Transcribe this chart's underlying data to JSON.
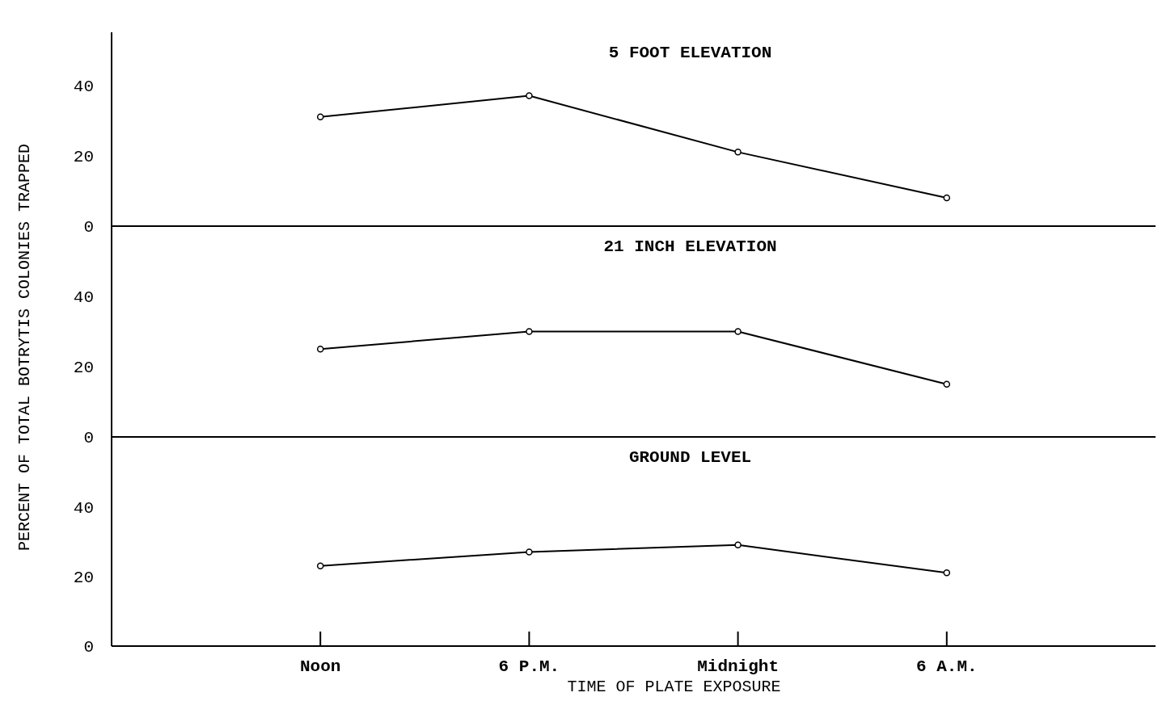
{
  "chart_data": [
    {
      "type": "line",
      "title": "5 FOOT ELEVATION",
      "series": [
        {
          "color": "#000000",
          "values": [
            31,
            37,
            21,
            8
          ]
        }
      ],
      "ylim": [
        0,
        55
      ],
      "yticks": [
        0,
        20,
        40
      ],
      "tick_labels": "y",
      "marker": "circle"
    },
    {
      "type": "line",
      "title": "21 INCH ELEVATION",
      "ylabel": "PERCENT OF TOTAL BOTRYTIS COLONIES TRAPPED",
      "series": [
        {
          "color": "#000000",
          "values": [
            25,
            30,
            30,
            15
          ]
        }
      ],
      "ylim": [
        0,
        60
      ],
      "yticks": [
        0,
        20,
        40
      ],
      "tick_labels": "y",
      "marker": "circle"
    },
    {
      "type": "line",
      "title": "GROUND LEVEL",
      "xlabel": "TIME OF PLATE EXPOSURE",
      "categories": [
        "Noon",
        "6 P.M.",
        "Midnight",
        "6 A.M."
      ],
      "series": [
        {
          "color": "#000000",
          "values": [
            23,
            27,
            29,
            21
          ]
        }
      ],
      "ylim": [
        0,
        60
      ],
      "yticks": [
        0,
        20,
        40
      ],
      "marker": "circle"
    }
  ]
}
